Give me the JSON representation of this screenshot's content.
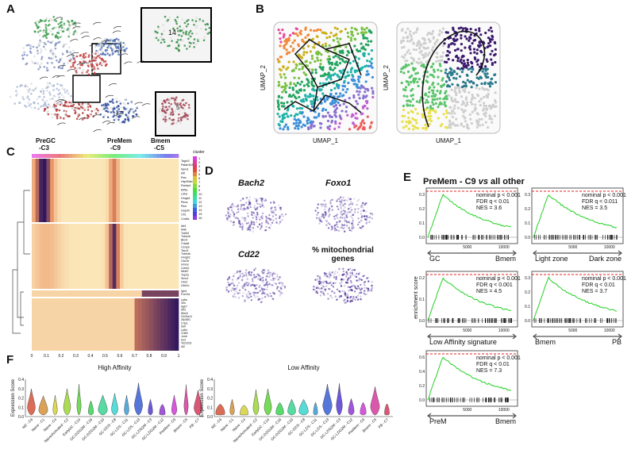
{
  "panel_labels": [
    "A",
    "B",
    "C",
    "D",
    "E",
    "F"
  ],
  "panel_a": {
    "insets": [
      "14",
      "5"
    ]
  },
  "panel_b": {
    "axis_y": "UMAP_2",
    "axis_x": "UMAP_1"
  },
  "panel_c": {
    "headers": [
      [
        "PreGC",
        "-C3"
      ],
      [
        "PreMem",
        "-C9"
      ],
      [
        "Bmem",
        "-C5"
      ]
    ],
    "legend_title": "cluster",
    "legend": [
      1,
      2,
      3,
      4,
      5,
      6,
      7,
      8,
      9,
      10,
      11,
      12,
      13,
      14,
      15,
      16
    ],
    "xticks": [
      0,
      0.1,
      0.2,
      0.3,
      0.4,
      0.5,
      0.6,
      0.7,
      0.8,
      0.9,
      1
    ],
    "genes": [
      "Tagln2",
      "Pafah1b3",
      "Npm1",
      "Mif",
      "Ran",
      "Hsp90ab1",
      "Ranbp1",
      "Eif5a",
      "Ldha",
      "Hmgb1",
      "Ptma",
      "Pkm",
      "Gapdh",
      "Cfl1",
      "Cox8a",
      "Atf4",
      "Mdk",
      "Tubb5",
      "Tuba1b",
      "Birc5",
      "Cdca8",
      "Cenpa",
      "Tacc3",
      "Tubb4b",
      "Hmgb2",
      "Cks1b",
      "Hmmr",
      "Ccnb2",
      "Mki67",
      "Top2a",
      "Smc4",
      "Cks2",
      "Ube2c",
      "Ighd",
      "Fcer2a",
      "Ly6a",
      "Vim",
      "Itgb7",
      "Klf2",
      "Ifitm3",
      "S100a11",
      "Zfp36l1",
      "Crip1",
      "Sell",
      "Ly6d",
      "Cd69",
      "Junb",
      "Ier2",
      "Tsc22d3",
      "Id2"
    ]
  },
  "panel_d": {
    "genes": [
      "Bach2",
      "Foxo1",
      "Cd22"
    ],
    "mito": [
      "% mitochondrial",
      "genes"
    ]
  },
  "panel_e": {
    "title": [
      "PreMem - C9 ",
      "vs",
      " all other"
    ],
    "ylabel": "enrichment score",
    "xticks": [
      "5000",
      "10000"
    ],
    "plots": [
      {
        "stats": [
          "nominal p < 0.001",
          "FDR q < 0.01",
          "NES = 3.6"
        ],
        "left": "GC",
        "right": "Bmem",
        "yticks": [
          "0.0",
          "0.1",
          "0.2",
          "0.3"
        ]
      },
      {
        "stats": [
          "nominal p < 0.001",
          "FDR q < 0.011",
          "NES = 3.5"
        ],
        "left": "Light zone",
        "right": "Dark zone",
        "yticks": [
          "0.0",
          "0.1",
          "0.2",
          "0.3"
        ]
      },
      {
        "stats": [
          "nominal p < 0.001",
          "FDR q < 0.001",
          "NES = 4.5"
        ],
        "left": "Low Affinity signature",
        "yticks": [
          "0.0",
          "0.1",
          "0.2"
        ]
      },
      {
        "stats": [
          "nominal p < 0.001",
          "FDR q < 0.01",
          "NES = 3.7"
        ],
        "left": "Bmem",
        "right": "PB",
        "yticks": [
          "0.0",
          "0.1",
          "0.2",
          "0.3"
        ]
      },
      {
        "stats": [
          "nominal p < 0.001",
          "FDR q < 0.01",
          "NES = 7.3"
        ],
        "left": "PreM",
        "right": "Bmem",
        "yticks": [
          "0.0",
          "0.2",
          "0.4",
          "0.6"
        ]
      }
    ]
  },
  "panel_f": {
    "ylabel": "Expression Score",
    "plots": [
      {
        "title": "High Affinity",
        "yticks": [
          "0.0",
          "0.1",
          "0.2",
          "0.3",
          "0.4"
        ]
      },
      {
        "title": "Low Affinity",
        "yticks": [
          "0.0",
          "0.1",
          "0.2",
          "0.3",
          "0.4"
        ]
      }
    ],
    "categories": [
      "MZ - C6",
      "Naive - C1",
      "Naive - C4",
      "Naive/Activated - C2",
      "EarlyGC - C14",
      "GC-DZ/G2M - C16",
      "GC-DZ/G2M - C10",
      "GC-DZ/S - C8",
      "GC-LZ/S - C11",
      "GC-LZ/S - C13",
      "GC-LZ/G2M - C3",
      "GC-LZ/G2M - C12",
      "PreMem - C9",
      "Bmem - C5",
      "PB - C7"
    ]
  }
}
